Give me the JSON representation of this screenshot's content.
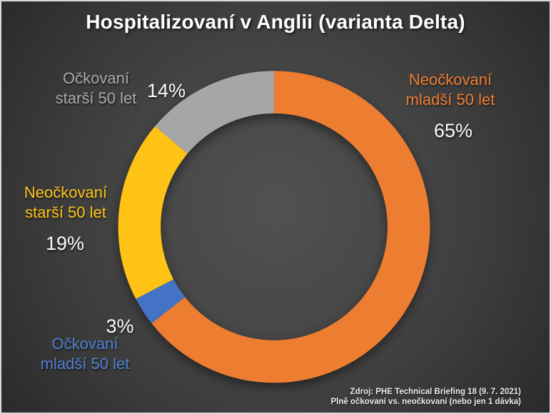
{
  "title": "Hospitalizovaní v Anglii (varianta Delta)",
  "chart_data": {
    "type": "pie",
    "subtype": "donut",
    "title": "Hospitalizovaní v Anglii (varianta Delta)",
    "categories": [
      "Neočkovaní mladší 50 let",
      "Očkovaní mladší 50 let",
      "Neočkovaní starší 50 let",
      "Očkovaní starší 50 let"
    ],
    "values": [
      65,
      3,
      19,
      14
    ],
    "unit": "%",
    "colors": [
      "#ED7D31",
      "#4472C4",
      "#FFC316",
      "#A6A6A6"
    ],
    "ids": [
      "neockovani-mladsi-50",
      "ockovani-mladsi-50",
      "neockovani-starsi-50",
      "ockovani-starsi-50"
    ],
    "start_angle_deg": -90,
    "direction": "clockwise",
    "legend_position": "labels-around-donut",
    "grid": false
  },
  "segments": [
    {
      "id": "neockovani-mladsi-50",
      "label": "Neočkovaní\nmladší 50 let",
      "pct_label": "65%",
      "value": 65,
      "text_color": "#ED7D31"
    },
    {
      "id": "ockovani-mladsi-50",
      "label": "Očkovaní\nmladší 50 let",
      "pct_label": "3%",
      "value": 3,
      "text_color": "#5080D2"
    },
    {
      "id": "neockovani-starsi-50",
      "label": "Neočkovaní\nstarší 50 let",
      "pct_label": "19%",
      "value": 19,
      "text_color": "#FFC316"
    },
    {
      "id": "ockovani-starsi-50",
      "label": "Očkovaní\nstarší 50 let",
      "pct_label": "14%",
      "value": 14,
      "text_color": "#A8A8A8"
    }
  ],
  "source": {
    "line1": "Zdroj: PHE Technical Briefing 18 (9. 7. 2021)",
    "line2": "Plně očkovaní vs. neočkovaní (nebo jen 1 dávka)"
  },
  "colors": {
    "background_center": "#515151",
    "background_edge": "#2a2a2a",
    "title_text": "#ffffff",
    "pct_text": "#fafafa",
    "frame_border": "#d9d9d9"
  }
}
